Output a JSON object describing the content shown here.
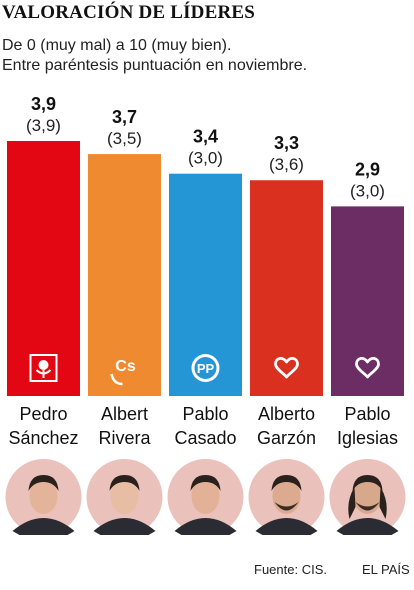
{
  "title": "VALORACIÓN DE LÍDERES",
  "subtitle": [
    "De 0 (muy mal) a 10 (muy bien).",
    "Entre paréntesis puntuación en noviembre."
  ],
  "chart_data": {
    "type": "bar",
    "categories": [
      [
        "Pedro",
        "Sánchez"
      ],
      [
        "Albert",
        "Rivera"
      ],
      [
        "Pablo",
        "Casado"
      ],
      [
        "Alberto",
        "Garzón"
      ],
      [
        "Pablo",
        "Iglesias"
      ]
    ],
    "series": [
      {
        "values": [
          3.9,
          3.7,
          3.4,
          3.3,
          2.9
        ],
        "labels": [
          "3,9",
          "3,7",
          "3,4",
          "3,3",
          "2,9"
        ]
      },
      {
        "values": [
          3.9,
          3.5,
          3.0,
          3.6,
          3.0
        ],
        "labels": [
          "(3,9)",
          "(3,5)",
          "(3,0)",
          "(3,6)",
          "(3,0)"
        ]
      }
    ],
    "colors": [
      "#e30613",
      "#f08a30",
      "#2596d5",
      "#d9301f",
      "#6b2d63"
    ],
    "logos": [
      "psoe-rose-icon",
      "cs-logo-icon",
      "pp-logo-icon",
      "heart-icon",
      "heart-icon"
    ],
    "portraits": [
      "pedro-sanchez-portrait",
      "albert-rivera-portrait",
      "pablo-casado-portrait",
      "alberto-garzon-portrait",
      "pablo-iglesias-portrait"
    ],
    "ylim": [
      0,
      4.3
    ],
    "grid": false,
    "legend": "none"
  },
  "footer": {
    "source": "Fuente: CIS.",
    "brand": "EL PAÍS"
  }
}
